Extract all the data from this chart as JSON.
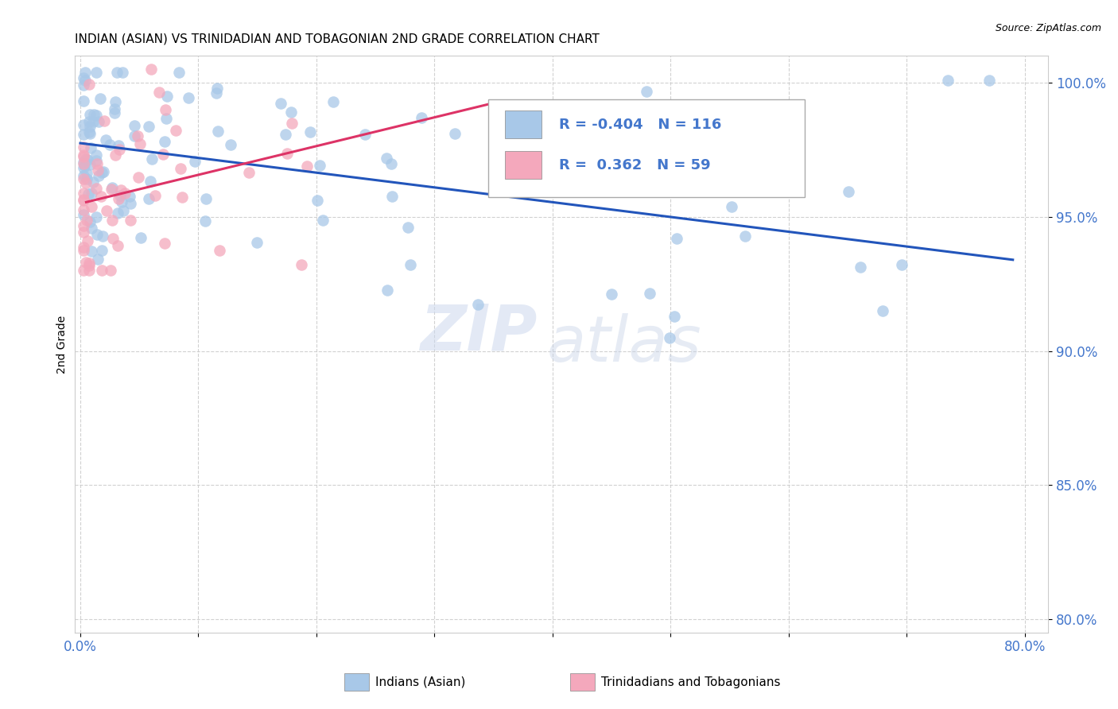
{
  "title": "INDIAN (ASIAN) VS TRINIDADIAN AND TOBAGONIAN 2ND GRADE CORRELATION CHART",
  "source": "Source: ZipAtlas.com",
  "ylabel": "2nd Grade",
  "xlabel": "",
  "legend_label_blue": "Indians (Asian)",
  "legend_label_pink": "Trinidadians and Tobagonians",
  "R_blue": -0.404,
  "N_blue": 116,
  "R_pink": 0.362,
  "N_pink": 59,
  "xlim": [
    -0.005,
    0.82
  ],
  "ylim": [
    0.795,
    1.01
  ],
  "yticks": [
    0.8,
    0.85,
    0.9,
    0.95,
    1.0
  ],
  "ytick_labels": [
    "80.0%",
    "85.0%",
    "90.0%",
    "95.0%",
    "100.0%"
  ],
  "xticks": [
    0.0,
    0.1,
    0.2,
    0.3,
    0.4,
    0.5,
    0.6,
    0.7,
    0.8
  ],
  "xtick_labels": [
    "0.0%",
    "",
    "",
    "",
    "",
    "",
    "",
    "",
    "80.0%"
  ],
  "color_blue": "#a8c8e8",
  "color_pink": "#f4a8bc",
  "trendline_color_blue": "#2255bb",
  "trendline_color_pink": "#dd3366",
  "background_color": "#ffffff",
  "grid_color": "#cccccc",
  "title_fontsize": 11,
  "axis_label_color": "#4477cc",
  "watermark_zip": "ZIP",
  "watermark_atlas": "atlas",
  "blue_trendline_x": [
    0.0,
    0.79
  ],
  "blue_trendline_y": [
    0.9775,
    0.934
  ],
  "pink_trendline_x": [
    0.005,
    0.355
  ],
  "pink_trendline_y": [
    0.9555,
    0.993
  ]
}
